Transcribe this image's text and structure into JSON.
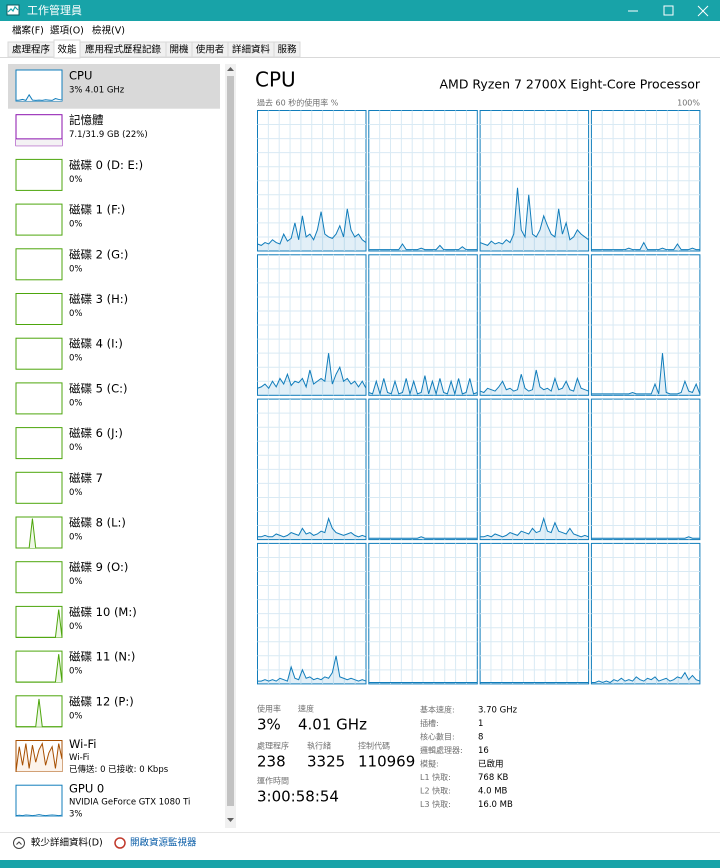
{
  "window": {
    "title": "工作管理員"
  },
  "menu": [
    "檔案(F)",
    "選項(O)",
    "檢視(V)"
  ],
  "tabs": [
    "處理程序",
    "效能",
    "應用程式歷程記錄",
    "開機",
    "使用者",
    "詳細資料",
    "服務"
  ],
  "active_tab": 1,
  "sidebar_graph_ylim": [
    0,
    100
  ],
  "sidebar": [
    {
      "name": "CPU",
      "detail": "3% 4.01 GHz",
      "color": "#117dbb",
      "fill": "#f1f6fa",
      "selected": true,
      "graph": [
        2,
        3,
        5,
        2,
        20,
        3,
        2,
        3,
        2,
        4,
        3,
        2,
        8,
        5,
        3
      ]
    },
    {
      "name": "記憶體",
      "detail": "7.1/31.9 GB (22%)",
      "color": "#8b12ae",
      "fill": "#f4f2f4",
      "graph": [
        22,
        22,
        22,
        22,
        22,
        22,
        22,
        22,
        22,
        22,
        22,
        22,
        22,
        22,
        22
      ]
    },
    {
      "name": "磁碟 0 (D: E:)",
      "detail": "0%",
      "color": "#4da60c",
      "fill": "#eff7e7"
    },
    {
      "name": "磁碟 1 (F:)",
      "detail": "0%",
      "color": "#4da60c",
      "fill": "#eff7e7"
    },
    {
      "name": "磁碟 2 (G:)",
      "detail": "0%",
      "color": "#4da60c",
      "fill": "#eff7e7"
    },
    {
      "name": "磁碟 3 (H:)",
      "detail": "0%",
      "color": "#4da60c",
      "fill": "#eff7e7"
    },
    {
      "name": "磁碟 4 (I:)",
      "detail": "0%",
      "color": "#4da60c",
      "fill": "#eff7e7"
    },
    {
      "name": "磁碟 5 (C:)",
      "detail": "0%",
      "color": "#4da60c",
      "fill": "#eff7e7"
    },
    {
      "name": "磁碟 6 (J:)",
      "detail": "0%",
      "color": "#4da60c",
      "fill": "#eff7e7"
    },
    {
      "name": "磁碟 7",
      "detail": "0%",
      "color": "#4da60c",
      "fill": "#eff7e7"
    },
    {
      "name": "磁碟 8 (L:)",
      "detail": "0%",
      "color": "#4da60c",
      "fill": "#eff7e7",
      "graph": [
        0,
        0,
        0,
        0,
        0,
        95,
        0,
        0,
        0,
        0,
        0,
        0,
        0,
        0,
        0
      ]
    },
    {
      "name": "磁碟 9 (O:)",
      "detail": "0%",
      "color": "#4da60c",
      "fill": "#eff7e7"
    },
    {
      "name": "磁碟 10 (M:)",
      "detail": "0%",
      "color": "#4da60c",
      "fill": "#eff7e7",
      "graph": [
        0,
        0,
        0,
        0,
        0,
        0,
        0,
        0,
        0,
        0,
        0,
        0,
        0,
        90,
        0
      ]
    },
    {
      "name": "磁碟 11 (N:)",
      "detail": "0%",
      "color": "#4da60c",
      "fill": "#eff7e7",
      "graph": [
        0,
        0,
        0,
        0,
        0,
        0,
        0,
        0,
        0,
        0,
        0,
        0,
        0,
        90,
        0
      ]
    },
    {
      "name": "磁碟 12 (P:)",
      "detail": "0%",
      "color": "#4da60c",
      "fill": "#eff7e7",
      "graph": [
        0,
        0,
        0,
        0,
        0,
        0,
        0,
        90,
        0,
        0,
        0,
        0,
        0,
        0,
        0
      ]
    },
    {
      "name": "Wi-Fi",
      "detail": "Wi-Fi",
      "detail2": "已傳送: 0 已接收: 0 Kbps",
      "color": "#a74f01",
      "fill": "#fcf3eb",
      "graph": [
        0,
        80,
        20,
        90,
        10,
        85,
        30,
        70,
        90,
        20,
        60,
        80,
        10,
        90,
        40
      ]
    },
    {
      "name": "GPU 0",
      "detail": "NVIDIA GeForce GTX 1080 Ti",
      "detail2": "3%",
      "color": "#117dbb",
      "fill": "#f1f6fa",
      "graph": [
        2,
        3,
        2,
        4,
        3,
        2,
        3,
        5,
        3,
        2,
        3,
        4,
        3,
        2,
        3
      ]
    }
  ],
  "header": {
    "title": "CPU",
    "processor": "AMD Ryzen 7 2700X Eight-Core Processor",
    "graph_label": "過去 60 秒的使用率 %",
    "graph_max": "100%"
  },
  "core_graphs": {
    "ylim": [
      0,
      100
    ],
    "color": "#117dbb",
    "series": [
      [
        5,
        4,
        6,
        5,
        8,
        6,
        5,
        12,
        7,
        9,
        20,
        8,
        25,
        10,
        12,
        8,
        15,
        28,
        12,
        10,
        9,
        12,
        18,
        10,
        30,
        15,
        10,
        12,
        8,
        6
      ],
      [
        1,
        1,
        1,
        1,
        1,
        1,
        1,
        1,
        1,
        5,
        1,
        1,
        1,
        1,
        2,
        1,
        1,
        1,
        1,
        4,
        1,
        1,
        1,
        1,
        1,
        3,
        1,
        1,
        1,
        1
      ],
      [
        6,
        5,
        4,
        7,
        5,
        6,
        5,
        8,
        6,
        12,
        45,
        15,
        10,
        40,
        12,
        10,
        15,
        25,
        18,
        12,
        10,
        30,
        12,
        20,
        8,
        10,
        15,
        12,
        10,
        8
      ],
      [
        1,
        1,
        1,
        1,
        1,
        1,
        1,
        1,
        1,
        1,
        2,
        1,
        1,
        1,
        6,
        1,
        1,
        1,
        1,
        2,
        1,
        1,
        1,
        5,
        1,
        1,
        1,
        2,
        1,
        1
      ],
      [
        5,
        6,
        8,
        5,
        10,
        6,
        12,
        8,
        15,
        7,
        10,
        9,
        12,
        6,
        18,
        8,
        10,
        12,
        10,
        30,
        8,
        15,
        20,
        10,
        12,
        8,
        10,
        6,
        10,
        5
      ],
      [
        2,
        1,
        10,
        1,
        12,
        2,
        1,
        10,
        1,
        2,
        12,
        1,
        10,
        1,
        2,
        14,
        1,
        10,
        1,
        12,
        2,
        1,
        10,
        1,
        12,
        1,
        2,
        12,
        1,
        2
      ],
      [
        3,
        2,
        5,
        4,
        3,
        6,
        10,
        4,
        5,
        3,
        4,
        15,
        5,
        3,
        4,
        18,
        6,
        4,
        5,
        3,
        12,
        4,
        5,
        10,
        4,
        3,
        12,
        5,
        4,
        3
      ],
      [
        1,
        1,
        1,
        1,
        1,
        1,
        1,
        1,
        1,
        1,
        1,
        2,
        1,
        1,
        1,
        1,
        1,
        8,
        1,
        30,
        2,
        1,
        1,
        1,
        2,
        10,
        3,
        2,
        8,
        1
      ],
      [
        2,
        2,
        3,
        2,
        2,
        4,
        3,
        2,
        3,
        5,
        4,
        3,
        8,
        4,
        5,
        3,
        4,
        6,
        5,
        15,
        8,
        5,
        4,
        3,
        4,
        5,
        3,
        2,
        3,
        2
      ],
      [
        1,
        1,
        1,
        1,
        1,
        1,
        1,
        1,
        1,
        1,
        1,
        1,
        1,
        1,
        2,
        1,
        1,
        1,
        1,
        1,
        1,
        1,
        1,
        1,
        1,
        1,
        1,
        1,
        1,
        1
      ],
      [
        2,
        2,
        3,
        2,
        4,
        3,
        2,
        3,
        5,
        4,
        3,
        6,
        5,
        4,
        8,
        5,
        6,
        15,
        6,
        5,
        12,
        6,
        5,
        4,
        8,
        4,
        3,
        2,
        3,
        2
      ],
      [
        1,
        1,
        1,
        1,
        1,
        1,
        1,
        1,
        1,
        1,
        1,
        1,
        1,
        1,
        1,
        1,
        1,
        1,
        1,
        1,
        1,
        1,
        1,
        1,
        1,
        1,
        2,
        1,
        1,
        1
      ],
      [
        2,
        2,
        3,
        2,
        3,
        2,
        4,
        3,
        2,
        12,
        4,
        3,
        10,
        4,
        5,
        3,
        4,
        3,
        5,
        4,
        8,
        20,
        5,
        4,
        3,
        4,
        3,
        2,
        3,
        2
      ],
      [
        1,
        1,
        1,
        1,
        1,
        1,
        1,
        1,
        1,
        1,
        1,
        1,
        1,
        1,
        1,
        1,
        1,
        1,
        1,
        1,
        1,
        1,
        1,
        1,
        1,
        1,
        1,
        1,
        1,
        1
      ],
      [
        1,
        1,
        1,
        1,
        1,
        1,
        1,
        1,
        1,
        1,
        1,
        1,
        1,
        1,
        1,
        1,
        1,
        1,
        1,
        1,
        1,
        1,
        1,
        1,
        1,
        1,
        1,
        1,
        1,
        1
      ],
      [
        1,
        1,
        2,
        1,
        2,
        1,
        3,
        2,
        4,
        2,
        3,
        2,
        5,
        3,
        2,
        4,
        3,
        5,
        2,
        3,
        4,
        2,
        3,
        5,
        4,
        8,
        3,
        6,
        3,
        2
      ]
    ]
  },
  "stats": [
    {
      "label": "使用率",
      "value": "3%"
    },
    {
      "label": "速度",
      "value": "4.01 GHz"
    },
    {
      "label": "處理程序",
      "value": "238"
    },
    {
      "label": "執行緒",
      "value": "3325"
    },
    {
      "label": "控制代碼",
      "value": "110969"
    },
    {
      "label": "運作時間",
      "value": "3:00:58:54"
    }
  ],
  "specs": [
    {
      "label": "基本速度:",
      "value": "3.70 GHz"
    },
    {
      "label": "插槽:",
      "value": "1"
    },
    {
      "label": "核心數目:",
      "value": "8"
    },
    {
      "label": "邏輯處理器:",
      "value": "16"
    },
    {
      "label": "模擬:",
      "value": "已啟用"
    },
    {
      "label": "L1 快取:",
      "value": "768 KB"
    },
    {
      "label": "L2 快取:",
      "value": "4.0 MB"
    },
    {
      "label": "L3 快取:",
      "value": "16.0 MB"
    }
  ],
  "footer": {
    "less": "較少詳細資料(D)",
    "monitor": "開啟資源監視器"
  }
}
